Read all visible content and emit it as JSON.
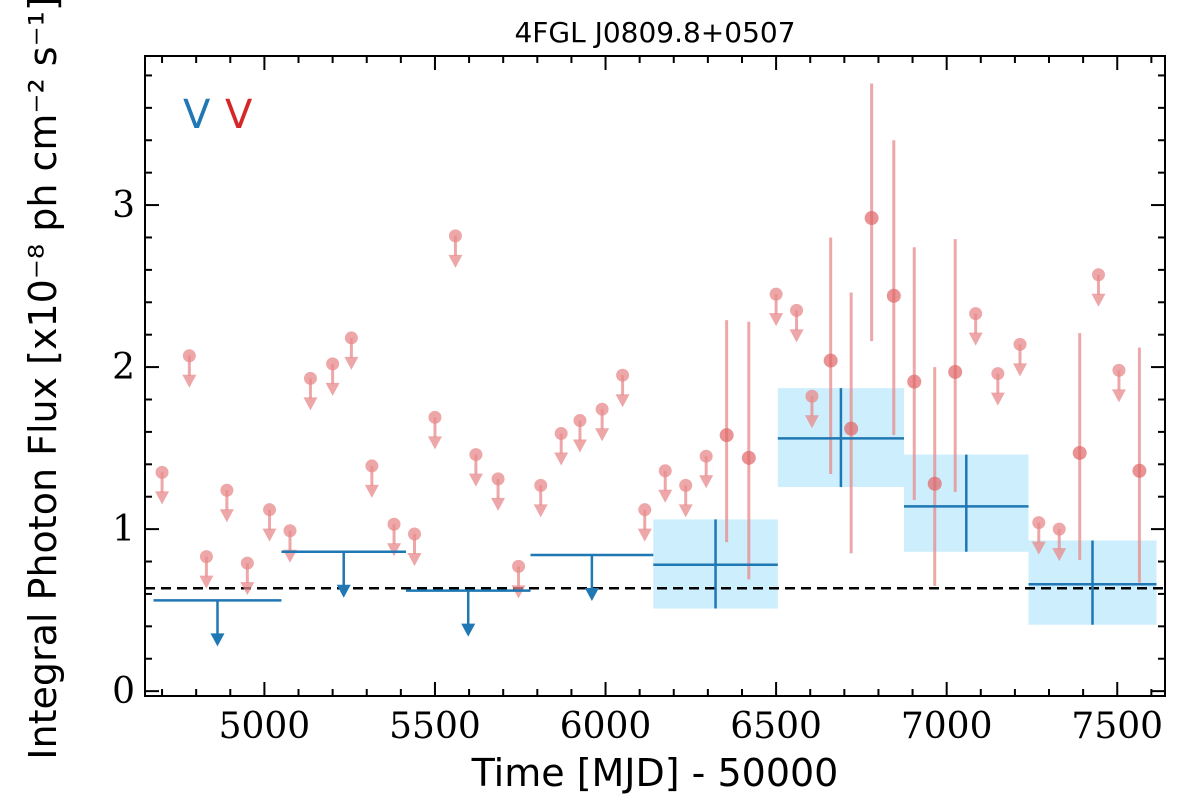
{
  "chart_data": {
    "type": "scatter",
    "title": "4FGL J0809.8+0507",
    "xlabel": "Time [MJD] - 50000",
    "ylabel": "Integral Photon Flux [x10⁻⁸ ph cm⁻² s⁻¹]",
    "xlim": [
      4650,
      7640
    ],
    "ylim": [
      -0.03,
      3.92
    ],
    "xticks": [
      5000,
      5500,
      6000,
      6500,
      7000,
      7500
    ],
    "yticks": [
      0,
      1,
      2,
      3
    ],
    "grid": false,
    "reference_line": {
      "y": 0.635,
      "style": "dashed",
      "color": "#000000"
    },
    "legend": {
      "placement": "top-left",
      "entries": [
        {
          "marker": "V",
          "color": "#1f77b4"
        },
        {
          "marker": "V",
          "color": "#d62728"
        }
      ]
    },
    "series": [
      {
        "color": "#e8898b",
        "kind": "short-bin",
        "upper_limits": [
          {
            "x": 4700,
            "y": 1.35
          },
          {
            "x": 4780,
            "y": 2.07
          },
          {
            "x": 4830,
            "y": 0.83
          },
          {
            "x": 4890,
            "y": 1.24
          },
          {
            "x": 4950,
            "y": 0.79
          },
          {
            "x": 5015,
            "y": 1.12
          },
          {
            "x": 5075,
            "y": 0.99
          },
          {
            "x": 5135,
            "y": 1.93
          },
          {
            "x": 5200,
            "y": 2.02
          },
          {
            "x": 5255,
            "y": 2.18
          },
          {
            "x": 5315,
            "y": 1.39
          },
          {
            "x": 5380,
            "y": 1.03
          },
          {
            "x": 5440,
            "y": 0.97
          },
          {
            "x": 5500,
            "y": 1.69
          },
          {
            "x": 5560,
            "y": 2.81
          },
          {
            "x": 5620,
            "y": 1.46
          },
          {
            "x": 5685,
            "y": 1.31
          },
          {
            "x": 5745,
            "y": 0.77
          },
          {
            "x": 5810,
            "y": 1.27
          },
          {
            "x": 5870,
            "y": 1.59
          },
          {
            "x": 5925,
            "y": 1.67
          },
          {
            "x": 5990,
            "y": 1.74
          },
          {
            "x": 6050,
            "y": 1.95
          },
          {
            "x": 6115,
            "y": 1.12
          },
          {
            "x": 6175,
            "y": 1.36
          },
          {
            "x": 6235,
            "y": 1.27
          },
          {
            "x": 6295,
            "y": 1.45
          },
          {
            "x": 6500,
            "y": 2.45
          },
          {
            "x": 6560,
            "y": 2.35
          },
          {
            "x": 6605,
            "y": 1.82
          },
          {
            "x": 7085,
            "y": 2.33
          },
          {
            "x": 7150,
            "y": 1.96
          },
          {
            "x": 7215,
            "y": 2.14
          },
          {
            "x": 7270,
            "y": 1.04
          },
          {
            "x": 7330,
            "y": 1.0
          },
          {
            "x": 7445,
            "y": 2.57
          },
          {
            "x": 7505,
            "y": 1.98
          }
        ],
        "detections": [
          {
            "x": 6355,
            "y": 1.58,
            "yerr_low": 0.66,
            "yerr_high": 0.71
          },
          {
            "x": 6420,
            "y": 1.44,
            "yerr_low": 0.75,
            "yerr_high": 0.84
          },
          {
            "x": 6660,
            "y": 2.04,
            "yerr_low": 0.7,
            "yerr_high": 0.76
          },
          {
            "x": 6720,
            "y": 1.62,
            "yerr_low": 0.77,
            "yerr_high": 0.84
          },
          {
            "x": 6780,
            "y": 2.92,
            "yerr_low": 0.76,
            "yerr_high": 0.83
          },
          {
            "x": 6845,
            "y": 2.44,
            "yerr_low": 0.86,
            "yerr_high": 0.96
          },
          {
            "x": 6905,
            "y": 1.91,
            "yerr_low": 0.73,
            "yerr_high": 0.83
          },
          {
            "x": 6965,
            "y": 1.28,
            "yerr_low": 0.63,
            "yerr_high": 0.72
          },
          {
            "x": 7025,
            "y": 1.97,
            "yerr_low": 0.74,
            "yerr_high": 0.82
          },
          {
            "x": 7390,
            "y": 1.47,
            "yerr_low": 0.66,
            "yerr_high": 0.74
          },
          {
            "x": 7565,
            "y": 1.36,
            "yerr_low": 0.69,
            "yerr_high": 0.76
          }
        ]
      },
      {
        "color": "#1f77b4",
        "band_color": "#cdeefc",
        "kind": "long-bin",
        "upper_limits": [
          {
            "x0": 4675,
            "x1": 5050,
            "y": 0.56
          },
          {
            "x0": 5050,
            "x1": 5415,
            "y": 0.86
          },
          {
            "x0": 5415,
            "x1": 5780,
            "y": 0.62
          },
          {
            "x0": 5780,
            "x1": 6140,
            "y": 0.84
          }
        ],
        "detections": [
          {
            "x0": 6140,
            "x1": 6505,
            "y": 0.78,
            "yerr_low": 0.27,
            "yerr_high": 0.28
          },
          {
            "x0": 6505,
            "x1": 6875,
            "y": 1.56,
            "yerr_low": 0.3,
            "yerr_high": 0.31
          },
          {
            "x0": 6875,
            "x1": 7240,
            "y": 1.14,
            "yerr_low": 0.28,
            "yerr_high": 0.32
          },
          {
            "x0": 7240,
            "x1": 7615,
            "y": 0.66,
            "yerr_low": 0.25,
            "yerr_high": 0.27
          }
        ]
      }
    ]
  }
}
